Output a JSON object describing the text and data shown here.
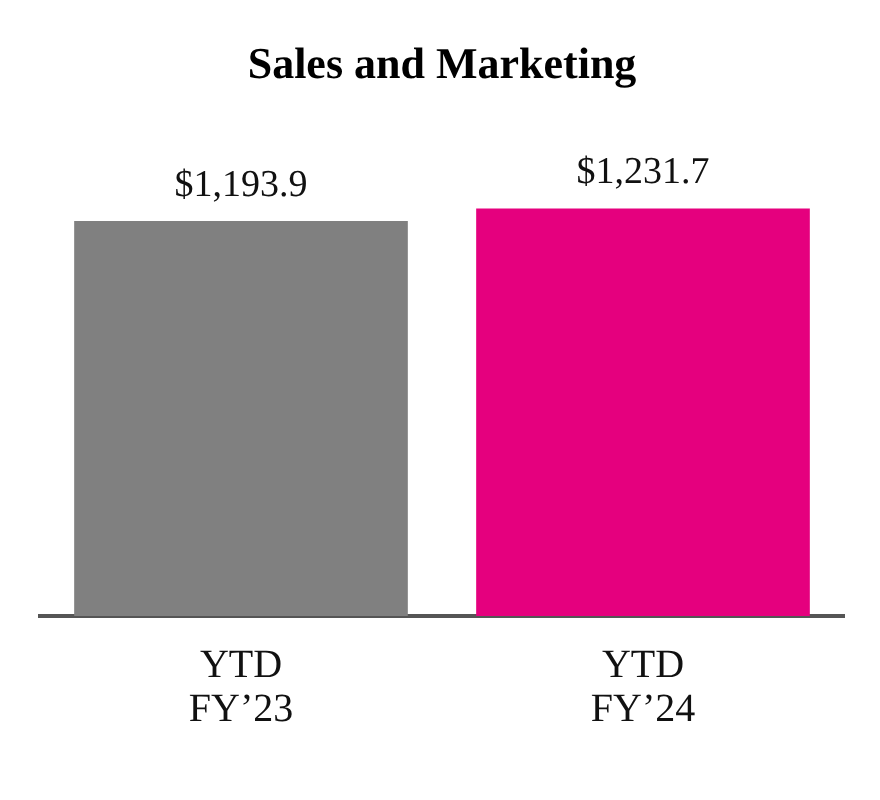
{
  "chart_data": {
    "type": "bar",
    "title": "Sales and Marketing",
    "categories": [
      "YTD\nFY’23",
      "YTD\nFY’24"
    ],
    "values": [
      1193.9,
      1231.7
    ],
    "colors": [
      "#808080",
      "#e5007e"
    ],
    "value_labels": [
      "$1,193.9",
      "$1,231.7"
    ],
    "grid": false,
    "legend": false
  }
}
